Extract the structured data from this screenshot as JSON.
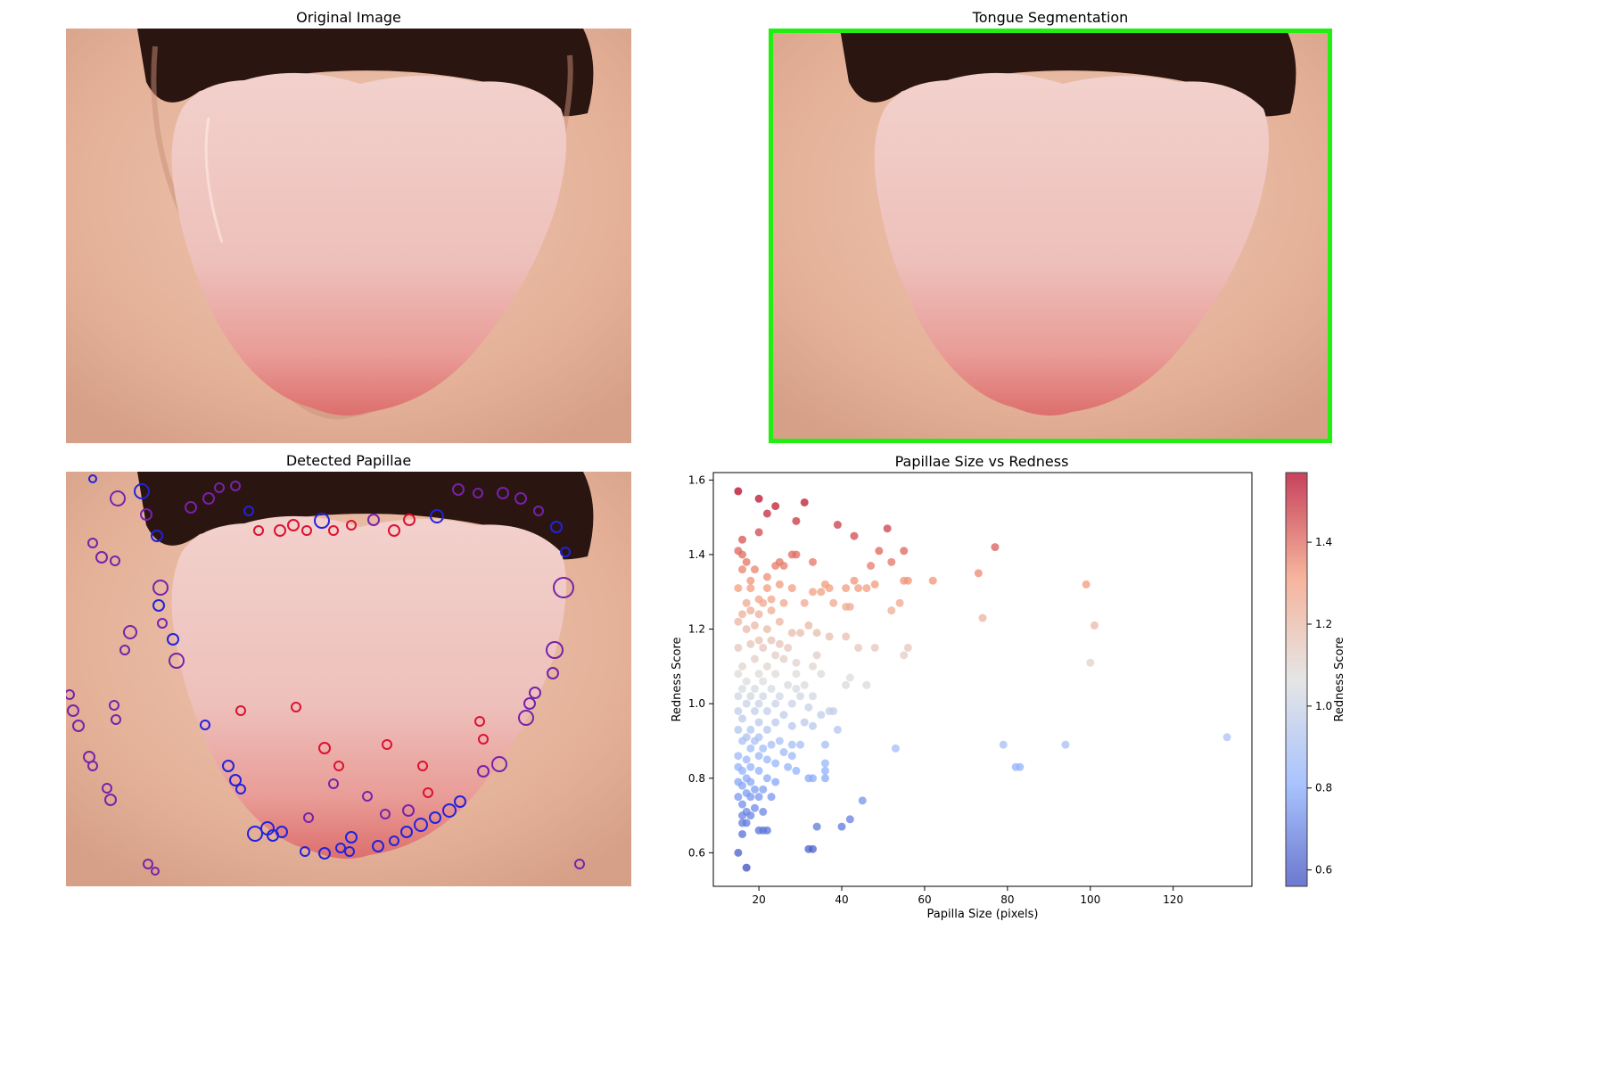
{
  "panels": {
    "original": {
      "title": "Original Image"
    },
    "segmentation": {
      "title": "Tongue Segmentation",
      "box_color": "#22ee11"
    },
    "papillae": {
      "title": "Detected Papillae"
    },
    "scatter": {
      "title": "Papillae Size vs Redness"
    }
  },
  "colors": {
    "skin": "#e3b29a",
    "mouth": "#2b1510",
    "tongue": "#eec2bd",
    "tongue_tip": "#e27f7c",
    "marker_blue": "#2222dd",
    "marker_purple": "#7722aa",
    "marker_red": "#dd1133"
  },
  "chart_data": {
    "type": "scatter",
    "title": "Papillae Size vs Redness",
    "xlabel": "Papilla Size (pixels)",
    "ylabel": "Redness Score",
    "xlim": [
      9,
      139
    ],
    "ylim": [
      0.51,
      1.62
    ],
    "xticks": [
      20,
      40,
      60,
      80,
      100,
      120
    ],
    "yticks": [
      0.6,
      0.8,
      1.0,
      1.2,
      1.4,
      1.6
    ],
    "colormap": "coolwarm",
    "colorbar": {
      "label": "Redness Score",
      "ticks": [
        0.6,
        0.8,
        1.0,
        1.2,
        1.4
      ],
      "range": [
        0.56,
        1.57
      ]
    },
    "grid": false,
    "points": [
      [
        15,
        1.57
      ],
      [
        20,
        1.55
      ],
      [
        24,
        1.53
      ],
      [
        31,
        1.54
      ],
      [
        22,
        1.51
      ],
      [
        29,
        1.49
      ],
      [
        20,
        1.46
      ],
      [
        39,
        1.48
      ],
      [
        43,
        1.45
      ],
      [
        51,
        1.47
      ],
      [
        16,
        1.44
      ],
      [
        77,
        1.42
      ],
      [
        49,
        1.41
      ],
      [
        55,
        1.41
      ],
      [
        15,
        1.41
      ],
      [
        16,
        1.4
      ],
      [
        28,
        1.4
      ],
      [
        29,
        1.4
      ],
      [
        25,
        1.38
      ],
      [
        17,
        1.38
      ],
      [
        24,
        1.37
      ],
      [
        26,
        1.37
      ],
      [
        33,
        1.38
      ],
      [
        52,
        1.38
      ],
      [
        16,
        1.36
      ],
      [
        19,
        1.36
      ],
      [
        47,
        1.37
      ],
      [
        73,
        1.35
      ],
      [
        22,
        1.34
      ],
      [
        18,
        1.33
      ],
      [
        25,
        1.32
      ],
      [
        36,
        1.32
      ],
      [
        41,
        1.31
      ],
      [
        43,
        1.33
      ],
      [
        48,
        1.32
      ],
      [
        55,
        1.33
      ],
      [
        56,
        1.33
      ],
      [
        62,
        1.33
      ],
      [
        99,
        1.32
      ],
      [
        15,
        1.31
      ],
      [
        18,
        1.31
      ],
      [
        22,
        1.31
      ],
      [
        28,
        1.31
      ],
      [
        33,
        1.3
      ],
      [
        35,
        1.3
      ],
      [
        37,
        1.31
      ],
      [
        44,
        1.31
      ],
      [
        46,
        1.31
      ],
      [
        20,
        1.28
      ],
      [
        23,
        1.28
      ],
      [
        17,
        1.27
      ],
      [
        21,
        1.27
      ],
      [
        26,
        1.27
      ],
      [
        31,
        1.27
      ],
      [
        38,
        1.27
      ],
      [
        41,
        1.26
      ],
      [
        42,
        1.26
      ],
      [
        54,
        1.27
      ],
      [
        18,
        1.25
      ],
      [
        23,
        1.25
      ],
      [
        16,
        1.24
      ],
      [
        20,
        1.24
      ],
      [
        52,
        1.25
      ],
      [
        74,
        1.23
      ],
      [
        25,
        1.22
      ],
      [
        15,
        1.22
      ],
      [
        19,
        1.21
      ],
      [
        32,
        1.21
      ],
      [
        101,
        1.21
      ],
      [
        17,
        1.2
      ],
      [
        22,
        1.2
      ],
      [
        28,
        1.19
      ],
      [
        30,
        1.19
      ],
      [
        34,
        1.19
      ],
      [
        37,
        1.18
      ],
      [
        41,
        1.18
      ],
      [
        20,
        1.17
      ],
      [
        23,
        1.17
      ],
      [
        18,
        1.16
      ],
      [
        25,
        1.16
      ],
      [
        15,
        1.15
      ],
      [
        21,
        1.15
      ],
      [
        27,
        1.15
      ],
      [
        44,
        1.15
      ],
      [
        48,
        1.15
      ],
      [
        56,
        1.15
      ],
      [
        24,
        1.13
      ],
      [
        19,
        1.12
      ],
      [
        26,
        1.12
      ],
      [
        29,
        1.11
      ],
      [
        34,
        1.13
      ],
      [
        55,
        1.13
      ],
      [
        100,
        1.11
      ],
      [
        16,
        1.1
      ],
      [
        22,
        1.1
      ],
      [
        33,
        1.1
      ],
      [
        15,
        1.08
      ],
      [
        20,
        1.08
      ],
      [
        24,
        1.08
      ],
      [
        29,
        1.08
      ],
      [
        35,
        1.08
      ],
      [
        42,
        1.07
      ],
      [
        17,
        1.06
      ],
      [
        21,
        1.06
      ],
      [
        27,
        1.05
      ],
      [
        31,
        1.05
      ],
      [
        41,
        1.05
      ],
      [
        46,
        1.05
      ],
      [
        16,
        1.04
      ],
      [
        19,
        1.04
      ],
      [
        23,
        1.04
      ],
      [
        29,
        1.04
      ],
      [
        15,
        1.02
      ],
      [
        18,
        1.02
      ],
      [
        21,
        1.02
      ],
      [
        25,
        1.02
      ],
      [
        30,
        1.02
      ],
      [
        33,
        1.02
      ],
      [
        17,
        1.0
      ],
      [
        20,
        1.0
      ],
      [
        24,
        1.0
      ],
      [
        28,
        1.0
      ],
      [
        32,
        0.99
      ],
      [
        37,
        0.98
      ],
      [
        38,
        0.98
      ],
      [
        15,
        0.98
      ],
      [
        19,
        0.98
      ],
      [
        22,
        0.98
      ],
      [
        26,
        0.97
      ],
      [
        35,
        0.97
      ],
      [
        16,
        0.96
      ],
      [
        20,
        0.95
      ],
      [
        24,
        0.95
      ],
      [
        31,
        0.95
      ],
      [
        28,
        0.94
      ],
      [
        33,
        0.94
      ],
      [
        15,
        0.93
      ],
      [
        18,
        0.93
      ],
      [
        22,
        0.93
      ],
      [
        39,
        0.93
      ],
      [
        17,
        0.91
      ],
      [
        20,
        0.91
      ],
      [
        25,
        0.9
      ],
      [
        133,
        0.91
      ],
      [
        16,
        0.9
      ],
      [
        19,
        0.9
      ],
      [
        23,
        0.89
      ],
      [
        28,
        0.89
      ],
      [
        30,
        0.89
      ],
      [
        79,
        0.89
      ],
      [
        94,
        0.89
      ],
      [
        36,
        0.89
      ],
      [
        18,
        0.88
      ],
      [
        21,
        0.88
      ],
      [
        26,
        0.87
      ],
      [
        53,
        0.88
      ],
      [
        15,
        0.86
      ],
      [
        20,
        0.86
      ],
      [
        28,
        0.86
      ],
      [
        17,
        0.85
      ],
      [
        22,
        0.85
      ],
      [
        24,
        0.84
      ],
      [
        36,
        0.84
      ],
      [
        82,
        0.83
      ],
      [
        83,
        0.83
      ],
      [
        15,
        0.83
      ],
      [
        18,
        0.83
      ],
      [
        27,
        0.83
      ],
      [
        16,
        0.82
      ],
      [
        20,
        0.82
      ],
      [
        29,
        0.82
      ],
      [
        36,
        0.82
      ],
      [
        17,
        0.8
      ],
      [
        22,
        0.8
      ],
      [
        32,
        0.8
      ],
      [
        33,
        0.8
      ],
      [
        36,
        0.8
      ],
      [
        15,
        0.79
      ],
      [
        18,
        0.79
      ],
      [
        24,
        0.79
      ],
      [
        16,
        0.78
      ],
      [
        19,
        0.77
      ],
      [
        21,
        0.77
      ],
      [
        17,
        0.76
      ],
      [
        15,
        0.75
      ],
      [
        18,
        0.75
      ],
      [
        20,
        0.75
      ],
      [
        23,
        0.75
      ],
      [
        45,
        0.74
      ],
      [
        16,
        0.73
      ],
      [
        19,
        0.72
      ],
      [
        17,
        0.71
      ],
      [
        21,
        0.71
      ],
      [
        16,
        0.7
      ],
      [
        18,
        0.7
      ],
      [
        42,
        0.69
      ],
      [
        16,
        0.68
      ],
      [
        17,
        0.68
      ],
      [
        34,
        0.67
      ],
      [
        40,
        0.67
      ],
      [
        20,
        0.66
      ],
      [
        21,
        0.66
      ],
      [
        22,
        0.66
      ],
      [
        16,
        0.65
      ],
      [
        32,
        0.61
      ],
      [
        33,
        0.61
      ],
      [
        15,
        0.6
      ],
      [
        17,
        0.56
      ]
    ]
  }
}
